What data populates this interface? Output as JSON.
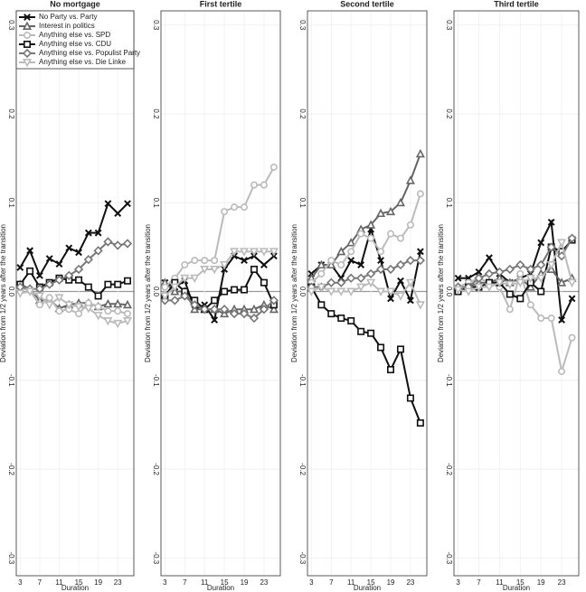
{
  "chart_data": [
    {
      "type": "line",
      "title": "No mortgage",
      "xlabel": "Duration",
      "ylabel": "Deviation from 1/2 years after the transition",
      "x": [
        3,
        5,
        7,
        9,
        11,
        13,
        15,
        17,
        19,
        21,
        23,
        25
      ],
      "xlim": [
        2.2,
        26.3
      ],
      "xticks": [
        3,
        7,
        11,
        15,
        19,
        23
      ],
      "ylim": [
        -0.32,
        0.316
      ],
      "yticks": [
        0.3,
        0.2,
        0.1,
        {
          "value": 0,
          "label": "0.0"
        },
        -0.1,
        -0.2,
        -0.3
      ],
      "grid": true,
      "legend": "upper left",
      "series": [
        {
          "name": "No Party vs. Party",
          "color": "#111111",
          "marker": "x",
          "values": [
            0.027,
            0.046,
            0.018,
            0.037,
            0.031,
            0.049,
            0.044,
            0.066,
            0.066,
            0.099,
            0.088,
            0.099
          ]
        },
        {
          "name": "Interest in politics",
          "color": "#666666",
          "marker": "triangle",
          "values": [
            0.008,
            0.003,
            -0.01,
            -0.009,
            -0.019,
            -0.015,
            -0.013,
            -0.013,
            -0.017,
            -0.014,
            -0.014,
            -0.015
          ]
        },
        {
          "name": "Anything else vs. SPD",
          "color": "#bbbbbb",
          "marker": "circle",
          "values": [
            0.005,
            0.001,
            -0.015,
            -0.007,
            -0.022,
            -0.02,
            -0.025,
            -0.013,
            -0.017,
            -0.022,
            -0.022,
            -0.025
          ]
        },
        {
          "name": "Anything else vs. CDU",
          "color": "#111111",
          "marker": "square",
          "values": [
            0.008,
            0.023,
            0.005,
            0.01,
            0.015,
            0.013,
            0.013,
            0.005,
            -0.005,
            0.008,
            0.008,
            0.012
          ]
        },
        {
          "name": "Anything else vs. Populist Party",
          "color": "#777777",
          "marker": "diamond",
          "values": [
            0.005,
            0.003,
            0.003,
            0.008,
            0.013,
            0.018,
            0.025,
            0.036,
            0.046,
            0.056,
            0.052,
            0.054
          ]
        },
        {
          "name": "Anything else vs. Die Linke",
          "color": "#bbbbbb",
          "marker": "down",
          "values": [
            -0.002,
            0,
            -0.005,
            -0.015,
            -0.007,
            -0.015,
            -0.017,
            -0.019,
            -0.027,
            -0.033,
            -0.036,
            -0.033
          ]
        }
      ]
    },
    {
      "type": "line",
      "title": "First tertile",
      "xlabel": "Duration",
      "ylabel": "Deviation from 1/2 years after the transition",
      "x": [
        3,
        5,
        7,
        9,
        11,
        13,
        15,
        17,
        19,
        21,
        23,
        25
      ],
      "xlim": [
        2.2,
        26.3
      ],
      "xticks": [
        3,
        7,
        11,
        15,
        19,
        23
      ],
      "ylim": [
        -0.32,
        0.316
      ],
      "yticks": [
        0.3,
        0.2,
        0.1,
        {
          "value": 0,
          "label": "0.0"
        },
        -0.1,
        -0.2,
        -0.3
      ],
      "grid": true,
      "series": [
        {
          "color": "#111111",
          "marker": "x",
          "values": [
            0.01,
            0.005,
            0.012,
            -0.02,
            -0.015,
            -0.032,
            0.025,
            0.04,
            0.035,
            0.04,
            0.03,
            0.04
          ]
        },
        {
          "color": "#666666",
          "marker": "triangle",
          "values": [
            0.01,
            0,
            0,
            -0.02,
            -0.02,
            -0.02,
            -0.025,
            -0.02,
            -0.02,
            -0.02,
            -0.015,
            -0.02
          ]
        },
        {
          "color": "#bbbbbb",
          "marker": "circle",
          "values": [
            0.005,
            0.015,
            0.03,
            0.035,
            0.035,
            0.035,
            0.09,
            0.095,
            0.095,
            0.12,
            0.12,
            0.14
          ]
        },
        {
          "color": "#111111",
          "marker": "square",
          "values": [
            -0.005,
            0.01,
            0,
            -0.01,
            -0.02,
            -0.01,
            0,
            0.002,
            0.002,
            0.025,
            0.01,
            -0.015
          ]
        },
        {
          "color": "#777777",
          "marker": "diamond",
          "values": [
            -0.01,
            -0.01,
            -0.005,
            -0.015,
            -0.02,
            -0.02,
            -0.02,
            -0.025,
            -0.025,
            -0.03,
            -0.02,
            -0.01
          ]
        },
        {
          "color": "#bbbbbb",
          "marker": "down",
          "values": [
            -0.005,
            0.005,
            0.015,
            0.015,
            0.025,
            0.025,
            0.03,
            0.045,
            0.045,
            0.045,
            0.045,
            0.045
          ]
        }
      ]
    },
    {
      "type": "line",
      "title": "Second tertile",
      "xlabel": "Duration",
      "ylabel": "Deviation from 1/2 years after the transition",
      "x": [
        3,
        5,
        7,
        9,
        11,
        13,
        15,
        17,
        19,
        21,
        23,
        25
      ],
      "xlim": [
        2.2,
        26.3
      ],
      "xticks": [
        3,
        7,
        11,
        15,
        19,
        23
      ],
      "ylim": [
        -0.32,
        0.316
      ],
      "yticks": [
        0.3,
        0.2,
        0.1,
        {
          "value": 0,
          "label": "0.0"
        },
        -0.1,
        -0.2,
        -0.3
      ],
      "grid": true,
      "series": [
        {
          "color": "#111111",
          "marker": "x",
          "values": [
            0.02,
            0.03,
            0.03,
            0.015,
            0.035,
            0.03,
            0.07,
            0.035,
            -0.008,
            0.012,
            -0.01,
            0.045
          ]
        },
        {
          "color": "#666666",
          "marker": "triangle",
          "values": [
            0.015,
            0.03,
            0.03,
            0.045,
            0.055,
            0.07,
            0.075,
            0.088,
            0.09,
            0.1,
            0.125,
            0.155
          ]
        },
        {
          "color": "#bbbbbb",
          "marker": "circle",
          "values": [
            0.01,
            0.02,
            0.035,
            0.03,
            0.045,
            0.065,
            0.06,
            0.045,
            0.065,
            0.06,
            0.075,
            0.11
          ]
        },
        {
          "color": "#111111",
          "marker": "square",
          "values": [
            0.005,
            -0.015,
            -0.025,
            -0.03,
            -0.033,
            -0.045,
            -0.047,
            -0.063,
            -0.088,
            -0.065,
            -0.12,
            -0.148
          ]
        },
        {
          "color": "#777777",
          "marker": "diamond",
          "values": [
            0.005,
            0.005,
            0.01,
            0.01,
            0.015,
            0.015,
            0.02,
            0.025,
            0.025,
            0.03,
            0.035,
            0.035
          ]
        },
        {
          "color": "#bbbbbb",
          "marker": "down",
          "values": [
            0,
            0.005,
            0,
            0,
            0,
            0.005,
            0.01,
            0,
            0,
            -0.005,
            0.01,
            -0.015
          ]
        }
      ]
    },
    {
      "type": "line",
      "title": "Third tertile",
      "xlabel": "Duration",
      "ylabel": "Deviation from 1/2 years after the transition",
      "x": [
        3,
        5,
        7,
        9,
        11,
        13,
        15,
        17,
        19,
        21,
        23,
        25
      ],
      "xlim": [
        2.2,
        26.3
      ],
      "xticks": [
        3,
        7,
        11,
        15,
        19,
        23
      ],
      "ylim": [
        -0.32,
        0.316
      ],
      "yticks": [
        0.3,
        0.2,
        0.1,
        {
          "value": 0,
          "label": "0.0"
        },
        -0.1,
        -0.2,
        -0.3
      ],
      "grid": true,
      "series": [
        {
          "color": "#111111",
          "marker": "x",
          "values": [
            0.015,
            0.015,
            0.022,
            0.038,
            0.02,
            0.01,
            0.015,
            0.02,
            0.055,
            0.078,
            -0.032,
            -0.008
          ]
        },
        {
          "color": "#666666",
          "marker": "triangle",
          "values": [
            0.005,
            0.005,
            0.01,
            0.01,
            0.015,
            0.01,
            0.015,
            0.005,
            0.02,
            0.025,
            0.01,
            0.015
          ]
        },
        {
          "color": "#bbbbbb",
          "marker": "circle",
          "values": [
            0.005,
            0.01,
            0.015,
            0.01,
            0.005,
            -0.02,
            0.02,
            -0.015,
            -0.03,
            -0.03,
            -0.09,
            -0.052
          ]
        },
        {
          "color": "#111111",
          "marker": "square",
          "values": [
            0,
            0.005,
            0.005,
            0.01,
            0.01,
            -0.003,
            -0.008,
            0.01,
            0,
            0.05,
            0.045,
            0.058
          ]
        },
        {
          "color": "#777777",
          "marker": "diamond",
          "values": [
            0.005,
            0.005,
            0.015,
            0.02,
            0.022,
            0.025,
            0.03,
            0.025,
            0.03,
            0.05,
            0.04,
            0.06
          ]
        },
        {
          "color": "#bbbbbb",
          "marker": "down",
          "values": [
            0.002,
            0,
            0.005,
            0.005,
            0.01,
            0.008,
            0.01,
            0.015,
            0.015,
            0.03,
            0.055,
            0.01
          ]
        }
      ]
    }
  ]
}
